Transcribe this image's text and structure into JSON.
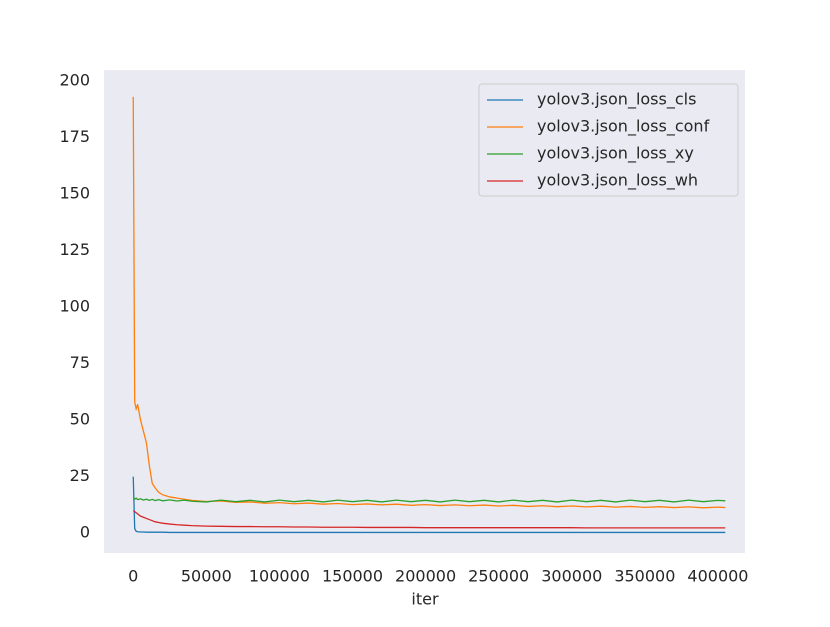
{
  "chart_data": {
    "type": "line",
    "x_label": "iter",
    "x": [
      0,
      1000,
      2000,
      3000,
      5000,
      7000,
      9000,
      11000,
      13000,
      15000,
      17500,
      20000,
      25000,
      30000,
      35000,
      40000,
      50000,
      60000,
      70000,
      80000,
      90000,
      100000,
      110000,
      120000,
      130000,
      140000,
      150000,
      160000,
      170000,
      180000,
      190000,
      200000,
      210000,
      220000,
      230000,
      240000,
      250000,
      260000,
      270000,
      280000,
      290000,
      300000,
      310000,
      320000,
      330000,
      340000,
      350000,
      360000,
      370000,
      380000,
      390000,
      400000,
      405000
    ],
    "series": [
      {
        "name": "yolov3.json_loss_cls",
        "color": "#1f77b4",
        "values": [
          25,
          2,
          0.8,
          0.6,
          0.5,
          0.5,
          0.4,
          0.4,
          0.4,
          0.4,
          0.4,
          0.4,
          0.3,
          0.3,
          0.3,
          0.3,
          0.3,
          0.3,
          0.3,
          0.3,
          0.3,
          0.3,
          0.3,
          0.3,
          0.3,
          0.3,
          0.3,
          0.3,
          0.3,
          0.3,
          0.3,
          0.3,
          0.3,
          0.3,
          0.3,
          0.3,
          0.3,
          0.3,
          0.3,
          0.3,
          0.3,
          0.3,
          0.3,
          0.3,
          0.3,
          0.3,
          0.3,
          0.3,
          0.3,
          0.3,
          0.3,
          0.3,
          0.3
        ]
      },
      {
        "name": "yolov3.json_loss_conf",
        "color": "#ff7f0e",
        "values": [
          193,
          58,
          55,
          57,
          50,
          45,
          40,
          30,
          22,
          20,
          18,
          17,
          16,
          15.5,
          15,
          14.5,
          14,
          14.2,
          13.6,
          13.8,
          13.2,
          13.5,
          13,
          13.3,
          12.8,
          13.1,
          12.6,
          12.9,
          12.5,
          12.8,
          12.3,
          12.6,
          12.2,
          12.5,
          12.1,
          12.4,
          12,
          12.3,
          11.8,
          12.1,
          11.7,
          12,
          11.6,
          11.9,
          11.5,
          11.8,
          11.4,
          11.7,
          11.3,
          11.6,
          11.2,
          11.5,
          11.3
        ]
      },
      {
        "name": "yolov3.json_loss_xy",
        "color": "#2ca02c",
        "values": [
          16,
          15,
          15.5,
          14.8,
          15.2,
          14.6,
          15,
          14.5,
          14.9,
          14.4,
          14.8,
          14.3,
          14.7,
          14.2,
          14.6,
          14.1,
          13.8,
          14.6,
          13.9,
          14.5,
          13.8,
          14.6,
          13.9,
          14.5,
          13.8,
          14.6,
          13.9,
          14.5,
          13.8,
          14.6,
          13.9,
          14.5,
          13.8,
          14.6,
          13.9,
          14.5,
          13.8,
          14.6,
          13.9,
          14.5,
          13.8,
          14.6,
          13.9,
          14.5,
          13.8,
          14.6,
          13.9,
          14.5,
          13.8,
          14.6,
          13.9,
          14.5,
          14.3
        ]
      },
      {
        "name": "yolov3.json_loss_wh",
        "color": "#d62728",
        "values": [
          10,
          9.5,
          9,
          8.5,
          7.5,
          7,
          6.5,
          6,
          5.5,
          5,
          4.7,
          4.4,
          4,
          3.7,
          3.5,
          3.3,
          3.1,
          3.0,
          2.9,
          2.9,
          2.8,
          2.8,
          2.7,
          2.7,
          2.6,
          2.6,
          2.6,
          2.5,
          2.5,
          2.5,
          2.5,
          2.4,
          2.4,
          2.4,
          2.4,
          2.4,
          2.4,
          2.4,
          2.4,
          2.4,
          2.4,
          2.4,
          2.3,
          2.3,
          2.3,
          2.3,
          2.3,
          2.3,
          2.3,
          2.3,
          2.3,
          2.3,
          2.3
        ]
      }
    ],
    "xlim": [
      -20000,
      418500
    ],
    "ylim": [
      -8.8,
      204.9
    ],
    "xticks": [
      0,
      50000,
      100000,
      150000,
      200000,
      250000,
      300000,
      350000,
      400000
    ],
    "yticks": [
      0,
      25,
      50,
      75,
      100,
      125,
      150,
      175,
      200
    ],
    "grid": false,
    "legend": "upper right",
    "background": "#eaeaf2"
  }
}
